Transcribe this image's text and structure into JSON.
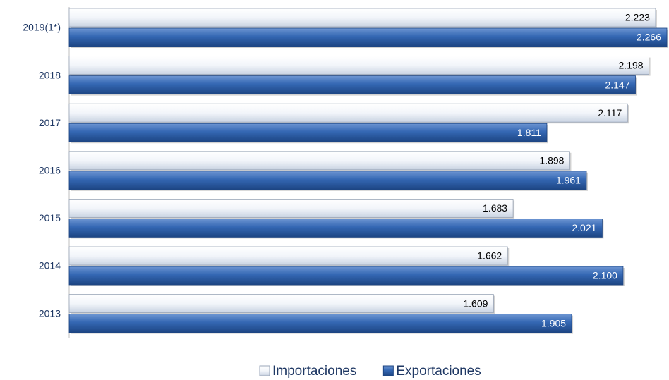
{
  "chart_data": {
    "type": "bar",
    "orientation": "horizontal",
    "categories": [
      "2019(1*)",
      "2018",
      "2017",
      "2016",
      "2015",
      "2014",
      "2013"
    ],
    "series": [
      {
        "name": "Importaciones",
        "color": "#dfe6f1",
        "values": [
          2.223,
          2.198,
          2.117,
          1.898,
          1.683,
          1.662,
          1.609
        ],
        "value_labels": [
          "2.223",
          "2.198",
          "2.117",
          "1.898",
          "1.683",
          "1.662",
          "1.609"
        ]
      },
      {
        "name": "Exportaciones",
        "color": "#2f62ae",
        "values": [
          2.266,
          2.147,
          1.811,
          1.961,
          2.021,
          2.1,
          1.905
        ],
        "value_labels": [
          "2.266",
          "2.147",
          "1.811",
          "1.961",
          "2.021",
          "2.100",
          "1.905"
        ]
      }
    ],
    "legend": "bottom"
  }
}
